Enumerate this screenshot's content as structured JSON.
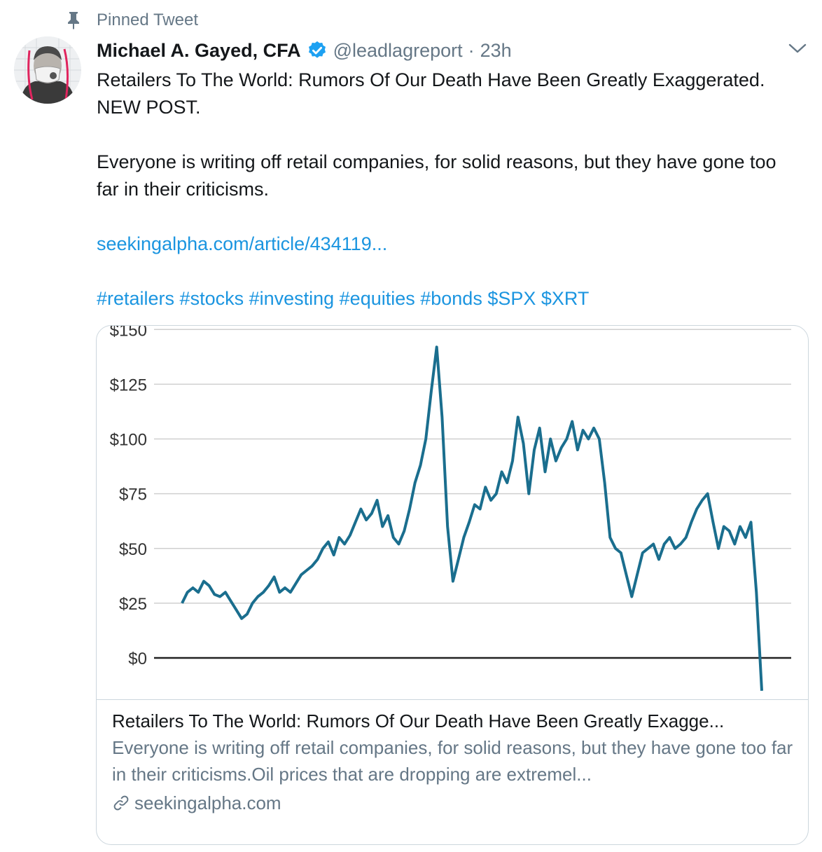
{
  "tweet": {
    "pinned_label": "Pinned Tweet",
    "author_name": "Michael A. Gayed, CFA",
    "handle": "@leadlagreport",
    "separator": "·",
    "time": "23h",
    "text_line1": "Retailers To The World: Rumors Of Our Death Have Been Greatly Exaggerated. NEW POST.",
    "text_line2": "Everyone is writing off retail companies, for solid reasons, but they have gone too far in their criticisms.",
    "link": "seekingalpha.com/article/434119...",
    "tags": "#retailers #stocks #investing #equities #bonds $SPX $XRT",
    "icons": {
      "pin": "pin-icon",
      "verified": "verified-badge-icon",
      "more": "chevron-down-icon",
      "link": "link-icon"
    },
    "colors": {
      "link": "#1b95e0",
      "verified": "#1da1f2",
      "muted": "#657786"
    }
  },
  "card": {
    "title": "Retailers To The World: Rumors Of Our Death Have Been Greatly Exagge...",
    "description": "Everyone is writing off retail companies, for solid reasons, but they have gone too far in their criticisms.Oil prices that are dropping are extremel...",
    "domain": "seekingalpha.com"
  },
  "chart_data": {
    "type": "line",
    "title": "",
    "xlabel": "",
    "ylabel": "",
    "ylim": [
      -15,
      150
    ],
    "yticks": [
      0,
      25,
      50,
      75,
      100,
      125,
      150
    ],
    "ytick_labels": [
      "$0",
      "$25",
      "$50",
      "$75",
      "$100",
      "$125",
      "$150"
    ],
    "grid": true,
    "line_color": "#1a6e8e",
    "series": [
      {
        "values": [
          25,
          30,
          32,
          30,
          35,
          33,
          29,
          28,
          30,
          26,
          22,
          18,
          20,
          25,
          28,
          30,
          33,
          37,
          30,
          32,
          30,
          34,
          38,
          40,
          42,
          45,
          50,
          53,
          47,
          55,
          52,
          56,
          62,
          68,
          63,
          66,
          72,
          60,
          65,
          55,
          52,
          58,
          68,
          80,
          88,
          100,
          122,
          142,
          110,
          60,
          35,
          45,
          55,
          62,
          70,
          68,
          78,
          72,
          75,
          85,
          80,
          90,
          110,
          98,
          75,
          95,
          105,
          85,
          100,
          90,
          96,
          100,
          108,
          95,
          104,
          100,
          105,
          100,
          80,
          55,
          50,
          48,
          38,
          28,
          38,
          48,
          50,
          52,
          45,
          52,
          55,
          50,
          52,
          55,
          62,
          68,
          72,
          75,
          62,
          50,
          60,
          58,
          52,
          60,
          55,
          62,
          30,
          -15
        ]
      }
    ]
  }
}
